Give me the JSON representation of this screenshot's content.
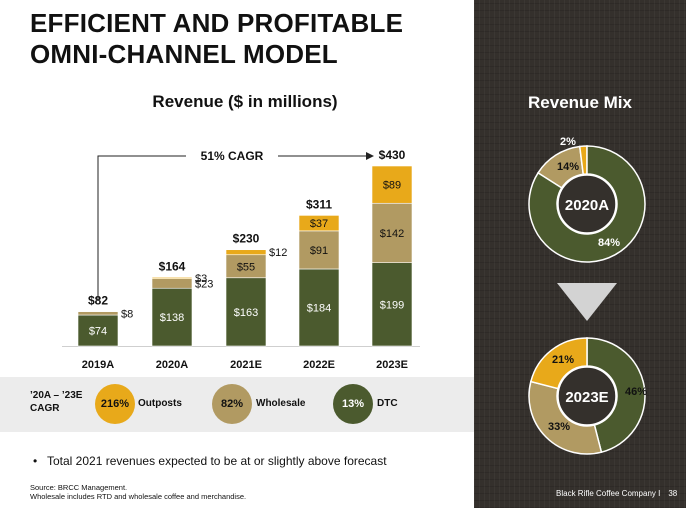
{
  "slide": {
    "title_line1": "EFFICIENT AND PROFITABLE",
    "title_line2": "OMNI-CHANNEL MODEL",
    "bullet": "Total 2021 revenues expected to be at or slightly above forecast",
    "source_line1": "Source: BRCC Management.",
    "source_line2": "Wholesale includes RTD and wholesale coffee and merchandise.",
    "footer_company": "Black Rifle Coffee Company  I",
    "page_number": "38"
  },
  "cagr": {
    "label_line1": "’20A – ’23E",
    "label_line2": "CAGR",
    "items": [
      {
        "value": "216%",
        "name": "Outposts",
        "color": "#e8a91a"
      },
      {
        "value": "82%",
        "name": "Wholesale",
        "color": "#b19a62"
      },
      {
        "value": "13%",
        "name": "DTC",
        "color": "#4b5a2e"
      }
    ]
  },
  "colors": {
    "dtc": "#4b5a2e",
    "wholesale": "#b19a62",
    "outposts": "#e8a91a"
  },
  "chart_data": [
    {
      "type": "bar",
      "title": "Revenue ($ in millions)",
      "categories": [
        "2019A",
        "2020A",
        "2021E",
        "2022E",
        "2023E"
      ],
      "stacked": true,
      "series": [
        {
          "key": "dtc",
          "values": [
            74,
            138,
            163,
            184,
            199
          ],
          "labels": [
            "$74",
            "$138",
            "$163",
            "$184",
            "$199"
          ]
        },
        {
          "key": "wholesale",
          "values": [
            8,
            23,
            55,
            91,
            142
          ],
          "labels": [
            "$8",
            "$23",
            "$55",
            "$91",
            "$142"
          ]
        },
        {
          "key": "outposts",
          "values": [
            0,
            3,
            12,
            37,
            89
          ],
          "labels": [
            "",
            "$3",
            "$12",
            "$37",
            "$89"
          ]
        }
      ],
      "totals": [
        "$82",
        "$164",
        "$230",
        "$311",
        "$430"
      ],
      "annotation": "51% CAGR",
      "ylim": [
        0,
        430
      ]
    },
    {
      "type": "pie",
      "title": "Revenue Mix",
      "center_label": "2020A",
      "slices": [
        {
          "key": "dtc",
          "value": 84,
          "label": "84%"
        },
        {
          "key": "wholesale",
          "value": 14,
          "label": "14%"
        },
        {
          "key": "outposts",
          "value": 2,
          "label": "2%"
        }
      ]
    },
    {
      "type": "pie",
      "center_label": "2023E",
      "slices": [
        {
          "key": "dtc",
          "value": 46,
          "label": "46%"
        },
        {
          "key": "wholesale",
          "value": 33,
          "label": "33%"
        },
        {
          "key": "outposts",
          "value": 21,
          "label": "21%"
        }
      ]
    }
  ]
}
